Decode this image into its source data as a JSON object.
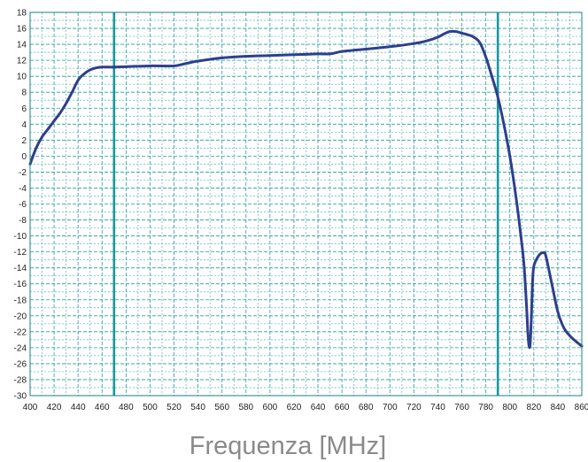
{
  "chart_data": {
    "type": "line",
    "title": "",
    "xlabel": "Frequenza [MHz]",
    "ylabel": "",
    "xlim": [
      400,
      860
    ],
    "ylim": [
      -30,
      18
    ],
    "xticks": [
      400,
      420,
      440,
      460,
      480,
      500,
      520,
      540,
      560,
      580,
      600,
      620,
      640,
      660,
      680,
      700,
      720,
      740,
      760,
      780,
      800,
      820,
      840,
      860
    ],
    "yticks": [
      18,
      16,
      14,
      12,
      10,
      8,
      6,
      4,
      2,
      0,
      -2,
      -4,
      -6,
      -8,
      -10,
      -12,
      -14,
      -16,
      -18,
      -20,
      -22,
      -24,
      -26,
      -28,
      -30
    ],
    "minor_x_step": 10,
    "minor_y_step": 1,
    "grid": true,
    "legend": "none",
    "vertical_markers": [
      470,
      790
    ],
    "series": [
      {
        "x": [
          400,
          405,
          410,
          415,
          420,
          425,
          430,
          435,
          440,
          445,
          450,
          455,
          460,
          465,
          470,
          480,
          500,
          520,
          530,
          540,
          560,
          580,
          600,
          620,
          640,
          650,
          660,
          680,
          700,
          720,
          730,
          740,
          745,
          750,
          755,
          760,
          765,
          770,
          775,
          780,
          785,
          790,
          795,
          800,
          805,
          810,
          812,
          814,
          815,
          816,
          817,
          818,
          819,
          820,
          822,
          825,
          828,
          830,
          835,
          840,
          845,
          850,
          855,
          860
        ],
        "y": [
          -1,
          1,
          2.4,
          3.4,
          4.4,
          5.4,
          6.6,
          8,
          9.5,
          10.3,
          10.8,
          11.05,
          11.15,
          11.15,
          11.15,
          11.2,
          11.3,
          11.3,
          11.6,
          11.9,
          12.3,
          12.5,
          12.6,
          12.7,
          12.8,
          12.8,
          13.1,
          13.4,
          13.7,
          14.1,
          14.4,
          14.9,
          15.3,
          15.6,
          15.6,
          15.4,
          15.2,
          14.9,
          14.2,
          12.4,
          10,
          7.4,
          4,
          0,
          -5,
          -11,
          -14,
          -19,
          -22,
          -23.8,
          -23.5,
          -20,
          -15.5,
          -13.8,
          -13,
          -12.3,
          -12.1,
          -12.5,
          -16,
          -19.5,
          -21.5,
          -22.5,
          -23.2,
          -23.8
        ]
      }
    ],
    "colors": {
      "line": "#2e3f8c",
      "markers": "#159a9e",
      "grid": "#2a9aa0",
      "axis": "#1f7f84"
    }
  }
}
